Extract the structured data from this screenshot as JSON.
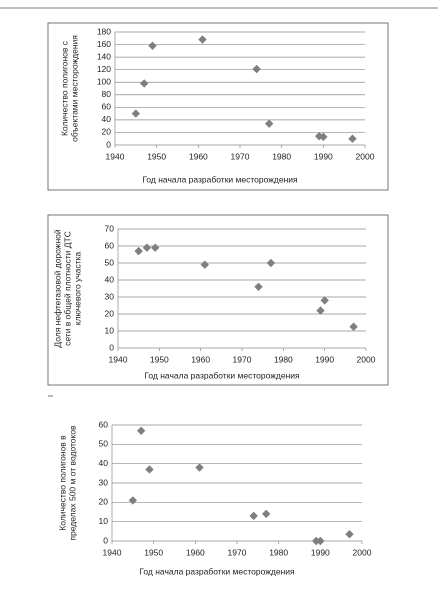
{
  "chart_data": [
    {
      "type": "scatter",
      "x_label": "Год начала разработки месторождения",
      "y_label": [
        "Количество полигонов с",
        "объектами месторождения"
      ],
      "x": [
        1945,
        1947,
        1949,
        1961,
        1974,
        1977,
        1989,
        1990,
        1997
      ],
      "values": [
        50,
        98,
        158,
        168,
        121,
        34,
        14,
        13,
        10
      ],
      "color": "#7f7f7f",
      "xlim": [
        1940,
        2000
      ],
      "xticks": [
        1940,
        1950,
        1960,
        1970,
        1980,
        1990,
        2000
      ],
      "ylim": [
        0,
        180
      ],
      "yticks": [
        0,
        20,
        40,
        60,
        80,
        100,
        120,
        140,
        160,
        180
      ],
      "grid": true
    },
    {
      "type": "scatter",
      "x_label": "Год начала разработки месторождения",
      "y_label": [
        "Доля нефтегазовой дорожной",
        "сети в общей плотности ДТС",
        "ключевого участка"
      ],
      "x": [
        1945,
        1947,
        1949,
        1961,
        1974,
        1977,
        1989,
        1990,
        1997
      ],
      "values": [
        57,
        59,
        59,
        49,
        36,
        50,
        22,
        28,
        12.5
      ],
      "color": "#7f7f7f",
      "xlim": [
        1940,
        2000
      ],
      "xticks": [
        1940,
        1950,
        1960,
        1970,
        1980,
        1990,
        2000
      ],
      "ylim": [
        0,
        70
      ],
      "yticks": [
        0,
        10,
        20,
        30,
        40,
        50,
        60,
        70
      ],
      "grid": true
    },
    {
      "type": "scatter",
      "x_label": "Год начала разработки месторождения",
      "y_label": [
        "Количество полигонов в",
        "пределах 500 м от водотоков"
      ],
      "x": [
        1945,
        1947,
        1949,
        1961,
        1974,
        1977,
        1989,
        1990,
        1997
      ],
      "values": [
        21,
        57,
        37,
        38,
        13,
        14,
        0,
        0,
        3.5
      ],
      "color": "#7f7f7f",
      "xlim": [
        1940,
        2000
      ],
      "xticks": [
        1940,
        1950,
        1960,
        1970,
        1980,
        1990,
        2000
      ],
      "ylim": [
        0,
        60
      ],
      "yticks": [
        0,
        10,
        20,
        30,
        40,
        50,
        60
      ],
      "grid": true
    }
  ]
}
